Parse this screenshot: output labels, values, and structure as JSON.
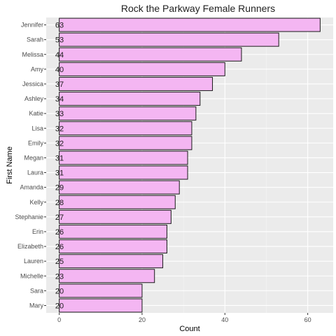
{
  "chart_data": {
    "type": "bar",
    "orientation": "horizontal",
    "title": "Rock the Parkway Female Runners",
    "xlabel": "Count",
    "ylabel": "First Name",
    "categories": [
      "Jennifer",
      "Sarah",
      "Melissa",
      "Amy",
      "Jessica",
      "Ashley",
      "Katie",
      "Lisa",
      "Emily",
      "Megan",
      "Laura",
      "Amanda",
      "Kelly",
      "Stephanie",
      "Erin",
      "Elizabeth",
      "Lauren",
      "Michelle",
      "Sara",
      "Mary"
    ],
    "values": [
      63,
      53,
      44,
      40,
      37,
      34,
      33,
      32,
      32,
      31,
      31,
      29,
      28,
      27,
      26,
      26,
      25,
      23,
      20,
      20
    ],
    "x_ticks": [
      0,
      20,
      40,
      60
    ],
    "xlim": [
      -3.15,
      66.15
    ],
    "grid": true,
    "colors": {
      "bar_fill": "#f4b6f2",
      "bar_stroke": "#1a1a1a",
      "panel": "#ebebeb",
      "grid_major": "#ffffff",
      "grid_minor": "#f5f5f5"
    }
  }
}
